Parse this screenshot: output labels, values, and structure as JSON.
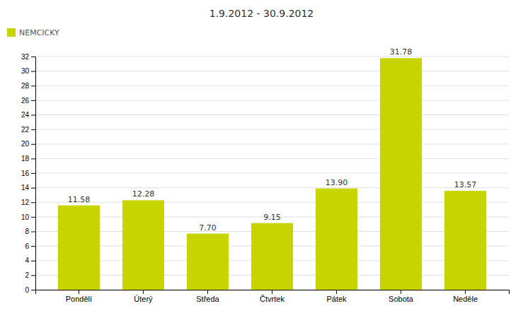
{
  "chart_data": {
    "type": "bar",
    "title": "1.9.2012 - 30.9.2012",
    "categories": [
      "Pondělí",
      "Úterý",
      "Středa",
      "Čtvrtek",
      "Pátek",
      "Sobota",
      "Neděle"
    ],
    "series": [
      {
        "name": "NEMCICKY",
        "color": "#c8d400",
        "values": [
          11.58,
          12.28,
          7.7,
          9.15,
          13.9,
          31.78,
          13.57
        ],
        "value_labels": [
          "11.58",
          "12.28",
          "7.70",
          "9.15",
          "13.90",
          "31.78",
          "13.57"
        ]
      }
    ],
    "ylim": [
      0,
      32
    ],
    "yticks": [
      0,
      2,
      4,
      6,
      8,
      10,
      12,
      14,
      16,
      18,
      20,
      22,
      24,
      26,
      28,
      30,
      32
    ],
    "grid": true,
    "legend": "top-left",
    "data_labels": true
  }
}
